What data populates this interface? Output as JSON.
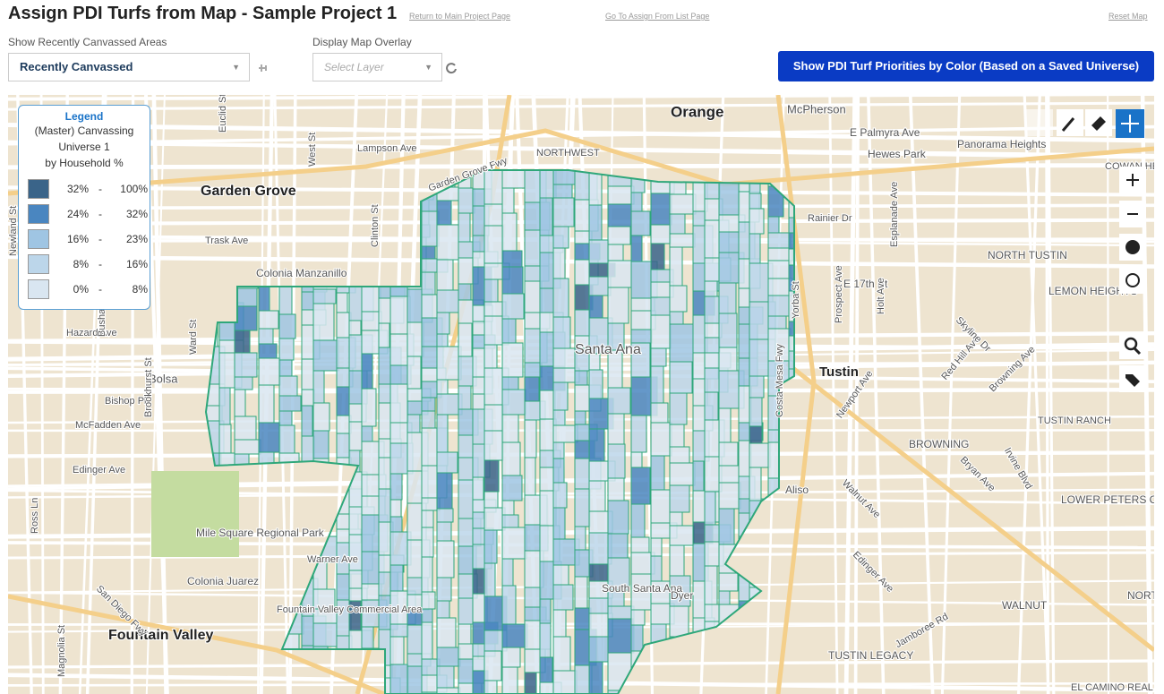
{
  "header": {
    "title": "Assign PDI Turfs from Map - Sample Project 1",
    "links": [
      "Return to Main Project Page",
      "Go To Assign From List Page",
      "Reset Map"
    ]
  },
  "controls": {
    "recent_label": "Show Recently Canvassed Areas",
    "recent_value": "Recently Canvassed",
    "overlay_label": "Display Map Overlay",
    "overlay_placeholder": "Select Layer",
    "priorities_button": "Show PDI Turf Priorities by Color (Based on a Saved Universe)"
  },
  "legend": {
    "title": "Legend",
    "subtitle": [
      "(Master) Canvassing",
      "Universe 1",
      "by Household %"
    ],
    "separator": "-",
    "rows": [
      {
        "from": "32%",
        "to": "100%",
        "color": "#3a6489"
      },
      {
        "from": "24%",
        "to": "32%",
        "color": "#4a86c0"
      },
      {
        "from": "16%",
        "to": "23%",
        "color": "#9fc5e3"
      },
      {
        "from": "8%",
        "to": "16%",
        "color": "#bcd6ea"
      },
      {
        "from": "0%",
        "to": "8%",
        "color": "#d9e6f1"
      }
    ]
  },
  "map": {
    "labels": [
      "Orange",
      "McPherson",
      "E Palmyra Ave",
      "Hewes Park",
      "Panorama Heights",
      "COWAN HEIGHTS",
      "NORTHWEST",
      "Garden Grove Fwy",
      "Garden Grove",
      "Lampson Ave",
      "Trask Ave",
      "Colonia Manzanillo",
      "Hazard Ave",
      "Bolsa",
      "Bishop Pl",
      "McFadden Ave",
      "Edinger Ave",
      "Mile Square Regional Park",
      "Warner Ave",
      "Colonia Juarez",
      "Fountain Valley Commercial Area",
      "Fountain Valley",
      "Santa Ana",
      "Tustin",
      "NORTH TUSTIN",
      "LEMON HEIGHTS",
      "E 17th St",
      "Aliso",
      "BROWNING",
      "TUSTIN RANCH",
      "LOWER PETERS CANYON",
      "NORTHWOOD",
      "WALNUT",
      "TUSTIN LEGACY",
      "EL CAMINO REAL",
      "South Santa Ana",
      "Dyer",
      "Newport Ave",
      "Walnut Ave",
      "Edinger Ave",
      "Jamboree Rd",
      "Irvine Blvd",
      "Bryan Ave",
      "Red Hill Ave",
      "Browning Ave",
      "Skyline Dr",
      "Esplanade Ave",
      "Holt Ave",
      "Prospect Ave",
      "Yorba St",
      "Costa Mesa Fwy",
      "Rainier Dr",
      "Euclid St",
      "Newland St",
      "Brookhurst St",
      "Ward St",
      "Bushard St",
      "San Diego Fwy",
      "Clinton St",
      "West St",
      "Ross Ln",
      "Magnolia St"
    ]
  }
}
